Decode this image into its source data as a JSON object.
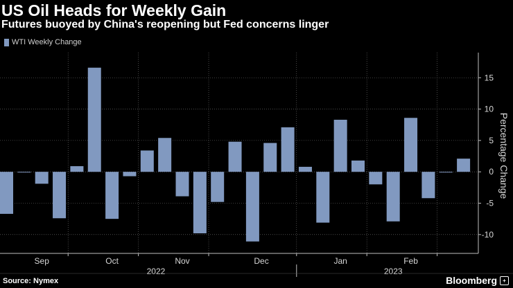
{
  "header": {
    "title": "US Oil Heads for Weekly Gain",
    "subtitle": "Futures buoyed by China's reopening but Fed concerns linger"
  },
  "legend": {
    "label": "WTI Weekly Change",
    "color": "#8199c0"
  },
  "footer": {
    "source": "Source: Nymex",
    "brand": "Bloomberg",
    "brand_icon": "plus-square-icon"
  },
  "colors": {
    "bar": "#8199c0",
    "grid": "#7a7a7a",
    "axis_text": "#d8d8d8",
    "background": "#000000"
  },
  "chart_data": {
    "type": "bar",
    "ylabel": "Percentage Change",
    "ylim": [
      -13,
      19
    ],
    "yticks": [
      15,
      10,
      5,
      0,
      -5,
      -10
    ],
    "y_axis_side": "right",
    "grid": true,
    "legend_position": "top-left",
    "series": [
      {
        "name": "WTI Weekly Change",
        "values": [
          -6.7,
          -0.1,
          -1.9,
          -7.4,
          0.9,
          16.6,
          -7.5,
          -0.7,
          3.4,
          5.4,
          -3.9,
          -9.8,
          -4.8,
          4.8,
          -11.1,
          4.6,
          7.1,
          0.8,
          -8.1,
          8.3,
          1.8,
          -2.0,
          -7.9,
          8.6,
          -4.2,
          -0.1,
          2.1
        ]
      }
    ],
    "x_month_labels": [
      {
        "label": "Sep",
        "bar_index": 2
      },
      {
        "label": "Oct",
        "bar_index": 6
      },
      {
        "label": "Nov",
        "bar_index": 10
      },
      {
        "label": "Dec",
        "bar_index": 14.5
      },
      {
        "label": "Jan",
        "bar_index": 19
      },
      {
        "label": "Feb",
        "bar_index": 23
      }
    ],
    "x_year_labels": [
      {
        "label": "2022",
        "bar_index": 8.5
      },
      {
        "label": "2023",
        "bar_index": 22
      }
    ],
    "vertical_gridlines_after_bar": [
      3.5,
      7.5,
      11.5,
      16.5,
      20.5,
      24.5
    ],
    "year_divider_after_bar": 16.5
  }
}
